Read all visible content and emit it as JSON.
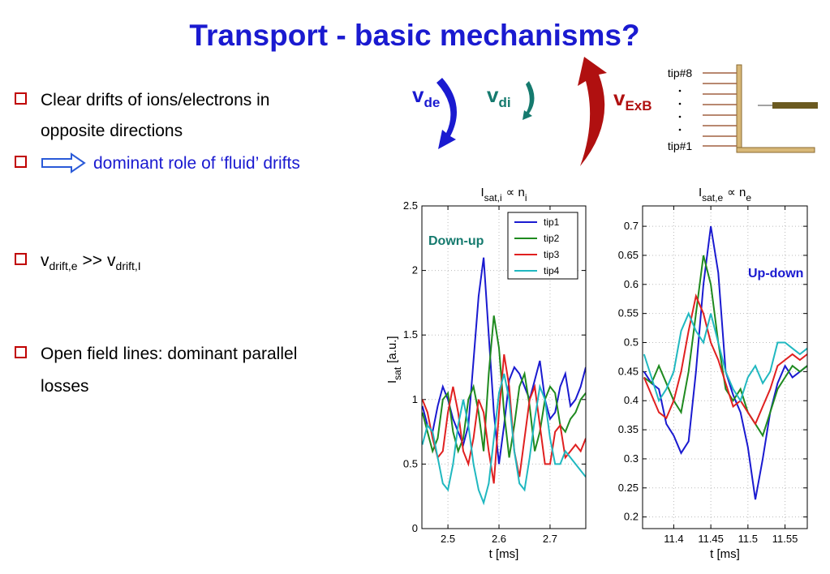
{
  "slide": {
    "title": "Transport - basic mechanisms?",
    "bullets": [
      {
        "text": "Clear drifts of ions/electrons in",
        "text2": "opposite directions"
      },
      {
        "text": "dominant role of ‘fluid’ drifts"
      },
      {
        "v1": "v",
        "sub1": "drift,e",
        "op": ">>",
        "v2": "v",
        "sub2": "drift,I"
      },
      {
        "text": "Open field lines: dominant parallel",
        "text2": "losses"
      }
    ],
    "drift_labels": [
      {
        "symbol": "v",
        "subscript": "de"
      },
      {
        "symbol": "v",
        "subscript": "di"
      },
      {
        "symbol": "v",
        "subscript": "ExB"
      }
    ],
    "probe_labels": [
      "tip#8",
      "tip#1"
    ]
  },
  "chart_data": [
    {
      "type": "line",
      "title": {
        "symbol": "I",
        "subscript": "sat,i",
        "relation": "∝ n",
        "relation_subscript": "i"
      },
      "ylabel": {
        "symbol": "I",
        "subscript": "sat",
        "unit": "[a.u.]"
      },
      "xlabel": "t  [ms]",
      "annotation": "Down-up",
      "x": [
        2.45,
        2.46,
        2.47,
        2.48,
        2.49,
        2.5,
        2.51,
        2.52,
        2.53,
        2.54,
        2.55,
        2.56,
        2.57,
        2.58,
        2.59,
        2.6,
        2.61,
        2.62,
        2.63,
        2.64,
        2.65,
        2.66,
        2.67,
        2.68,
        2.69,
        2.7,
        2.71,
        2.72,
        2.73,
        2.74,
        2.75,
        2.76,
        2.77
      ],
      "xlim": [
        2.449,
        2.77
      ],
      "xticks": [
        2.5,
        2.6,
        2.7
      ],
      "ylim": [
        0,
        2.5
      ],
      "yticks": [
        0,
        0.5,
        1,
        1.5,
        2,
        2.5
      ],
      "grid": true,
      "legend": "upper right",
      "series": [
        {
          "name": "tip1",
          "color": "#1a1ad0",
          "values": [
            0.95,
            0.8,
            0.75,
            0.95,
            1.1,
            1.0,
            0.85,
            0.75,
            0.65,
            0.8,
            1.3,
            1.8,
            2.1,
            1.5,
            0.9,
            0.5,
            0.8,
            1.15,
            1.25,
            1.2,
            1.1,
            1.0,
            1.15,
            1.3,
            1.0,
            0.85,
            0.9,
            1.1,
            1.2,
            0.95,
            1.0,
            1.1,
            1.25
          ]
        },
        {
          "name": "tip2",
          "color": "#1f8a1f",
          "values": [
            0.9,
            0.75,
            0.6,
            0.7,
            1.0,
            1.05,
            0.75,
            0.6,
            0.7,
            1.0,
            1.1,
            0.9,
            0.6,
            1.2,
            1.65,
            1.4,
            0.9,
            0.55,
            0.8,
            1.1,
            1.2,
            0.95,
            0.6,
            0.75,
            1.0,
            1.1,
            1.05,
            0.8,
            0.75,
            0.85,
            0.9,
            1.0,
            1.05
          ]
        },
        {
          "name": "tip3",
          "color": "#e02020",
          "values": [
            1.0,
            0.9,
            0.7,
            0.55,
            0.6,
            0.9,
            1.1,
            0.9,
            0.6,
            0.5,
            0.7,
            1.0,
            0.9,
            0.6,
            0.35,
            0.9,
            1.35,
            1.1,
            0.6,
            0.4,
            0.7,
            1.0,
            1.1,
            0.8,
            0.5,
            0.5,
            0.75,
            0.8,
            0.55,
            0.6,
            0.65,
            0.6,
            0.7
          ]
        },
        {
          "name": "tip4",
          "color": "#20b8c0",
          "values": [
            0.65,
            0.8,
            0.75,
            0.55,
            0.35,
            0.3,
            0.5,
            0.8,
            1.0,
            0.8,
            0.5,
            0.3,
            0.2,
            0.35,
            0.7,
            1.05,
            1.2,
            1.0,
            0.6,
            0.35,
            0.3,
            0.55,
            0.85,
            1.1,
            1.0,
            0.7,
            0.5,
            0.5,
            0.6,
            0.55,
            0.5,
            0.45,
            0.4
          ]
        }
      ]
    },
    {
      "type": "line",
      "title": {
        "symbol": "I",
        "subscript": "sat,e",
        "relation": "∝ n",
        "relation_subscript": "e"
      },
      "xlabel": "t  [ms]",
      "annotation": "Up-down",
      "x": [
        11.36,
        11.37,
        11.38,
        11.39,
        11.4,
        11.41,
        11.42,
        11.43,
        11.44,
        11.45,
        11.46,
        11.47,
        11.48,
        11.49,
        11.5,
        11.51,
        11.52,
        11.53,
        11.54,
        11.55,
        11.56,
        11.57,
        11.58
      ],
      "xlim": [
        11.358,
        11.58
      ],
      "xticks": [
        11.4,
        11.45,
        11.5,
        11.55
      ],
      "ylim": [
        0.18,
        0.735
      ],
      "yticks": [
        0.2,
        0.25,
        0.3,
        0.35,
        0.4,
        0.45,
        0.5,
        0.55,
        0.6,
        0.65,
        0.7
      ],
      "grid": true,
      "series": [
        {
          "name": "tip1",
          "color": "#1a1ad0",
          "values": [
            0.45,
            0.43,
            0.42,
            0.36,
            0.34,
            0.31,
            0.33,
            0.45,
            0.6,
            0.7,
            0.62,
            0.45,
            0.41,
            0.38,
            0.32,
            0.23,
            0.3,
            0.38,
            0.43,
            0.46,
            0.44,
            0.45,
            0.46
          ]
        },
        {
          "name": "tip2",
          "color": "#1f8a1f",
          "values": [
            0.44,
            0.43,
            0.46,
            0.43,
            0.4,
            0.38,
            0.45,
            0.55,
            0.65,
            0.6,
            0.5,
            0.42,
            0.4,
            0.42,
            0.38,
            0.36,
            0.34,
            0.38,
            0.42,
            0.44,
            0.46,
            0.45,
            0.46
          ]
        },
        {
          "name": "tip3",
          "color": "#e02020",
          "values": [
            0.44,
            0.41,
            0.38,
            0.37,
            0.4,
            0.45,
            0.52,
            0.58,
            0.55,
            0.5,
            0.47,
            0.43,
            0.39,
            0.4,
            0.38,
            0.36,
            0.39,
            0.42,
            0.46,
            0.47,
            0.48,
            0.47,
            0.48
          ]
        },
        {
          "name": "tip4",
          "color": "#20b8c0",
          "values": [
            0.48,
            0.44,
            0.4,
            0.42,
            0.45,
            0.52,
            0.55,
            0.52,
            0.5,
            0.55,
            0.5,
            0.45,
            0.42,
            0.4,
            0.44,
            0.46,
            0.43,
            0.45,
            0.5,
            0.5,
            0.49,
            0.48,
            0.49
          ]
        }
      ]
    }
  ]
}
